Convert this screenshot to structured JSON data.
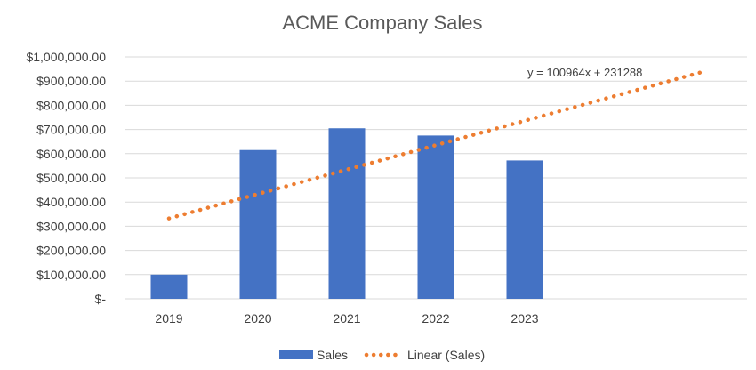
{
  "chart_data": {
    "type": "bar",
    "title": "ACME Company Sales",
    "categories": [
      "2019",
      "2020",
      "2021",
      "2022",
      "2023"
    ],
    "series": [
      {
        "name": "Sales",
        "values": [
          100000,
          615000,
          705000,
          675000,
          572000
        ],
        "color": "#4472C4"
      }
    ],
    "trendline": {
      "name": "Linear (Sales)",
      "slope": 100964,
      "intercept": 231288,
      "x_start": 1,
      "x_end": 7,
      "equation_label": "y = 100964x + 231288",
      "color": "#ED7D31",
      "style": "dotted"
    },
    "ylim": [
      0,
      1000000
    ],
    "y_ticks": [
      {
        "value": 0,
        "label": "$-"
      },
      {
        "value": 100000,
        "label": "$100,000.00"
      },
      {
        "value": 200000,
        "label": "$200,000.00"
      },
      {
        "value": 300000,
        "label": "$300,000.00"
      },
      {
        "value": 400000,
        "label": "$400,000.00"
      },
      {
        "value": 500000,
        "label": "$500,000.00"
      },
      {
        "value": 600000,
        "label": "$600,000.00"
      },
      {
        "value": 700000,
        "label": "$700,000.00"
      },
      {
        "value": 800000,
        "label": "$800,000.00"
      },
      {
        "value": 900000,
        "label": "$900,000.00"
      },
      {
        "value": 1000000,
        "label": "$1,000,000.00"
      }
    ],
    "category_slots": 7,
    "grid": true,
    "legend": "bottom",
    "xlabel": "",
    "ylabel": ""
  }
}
